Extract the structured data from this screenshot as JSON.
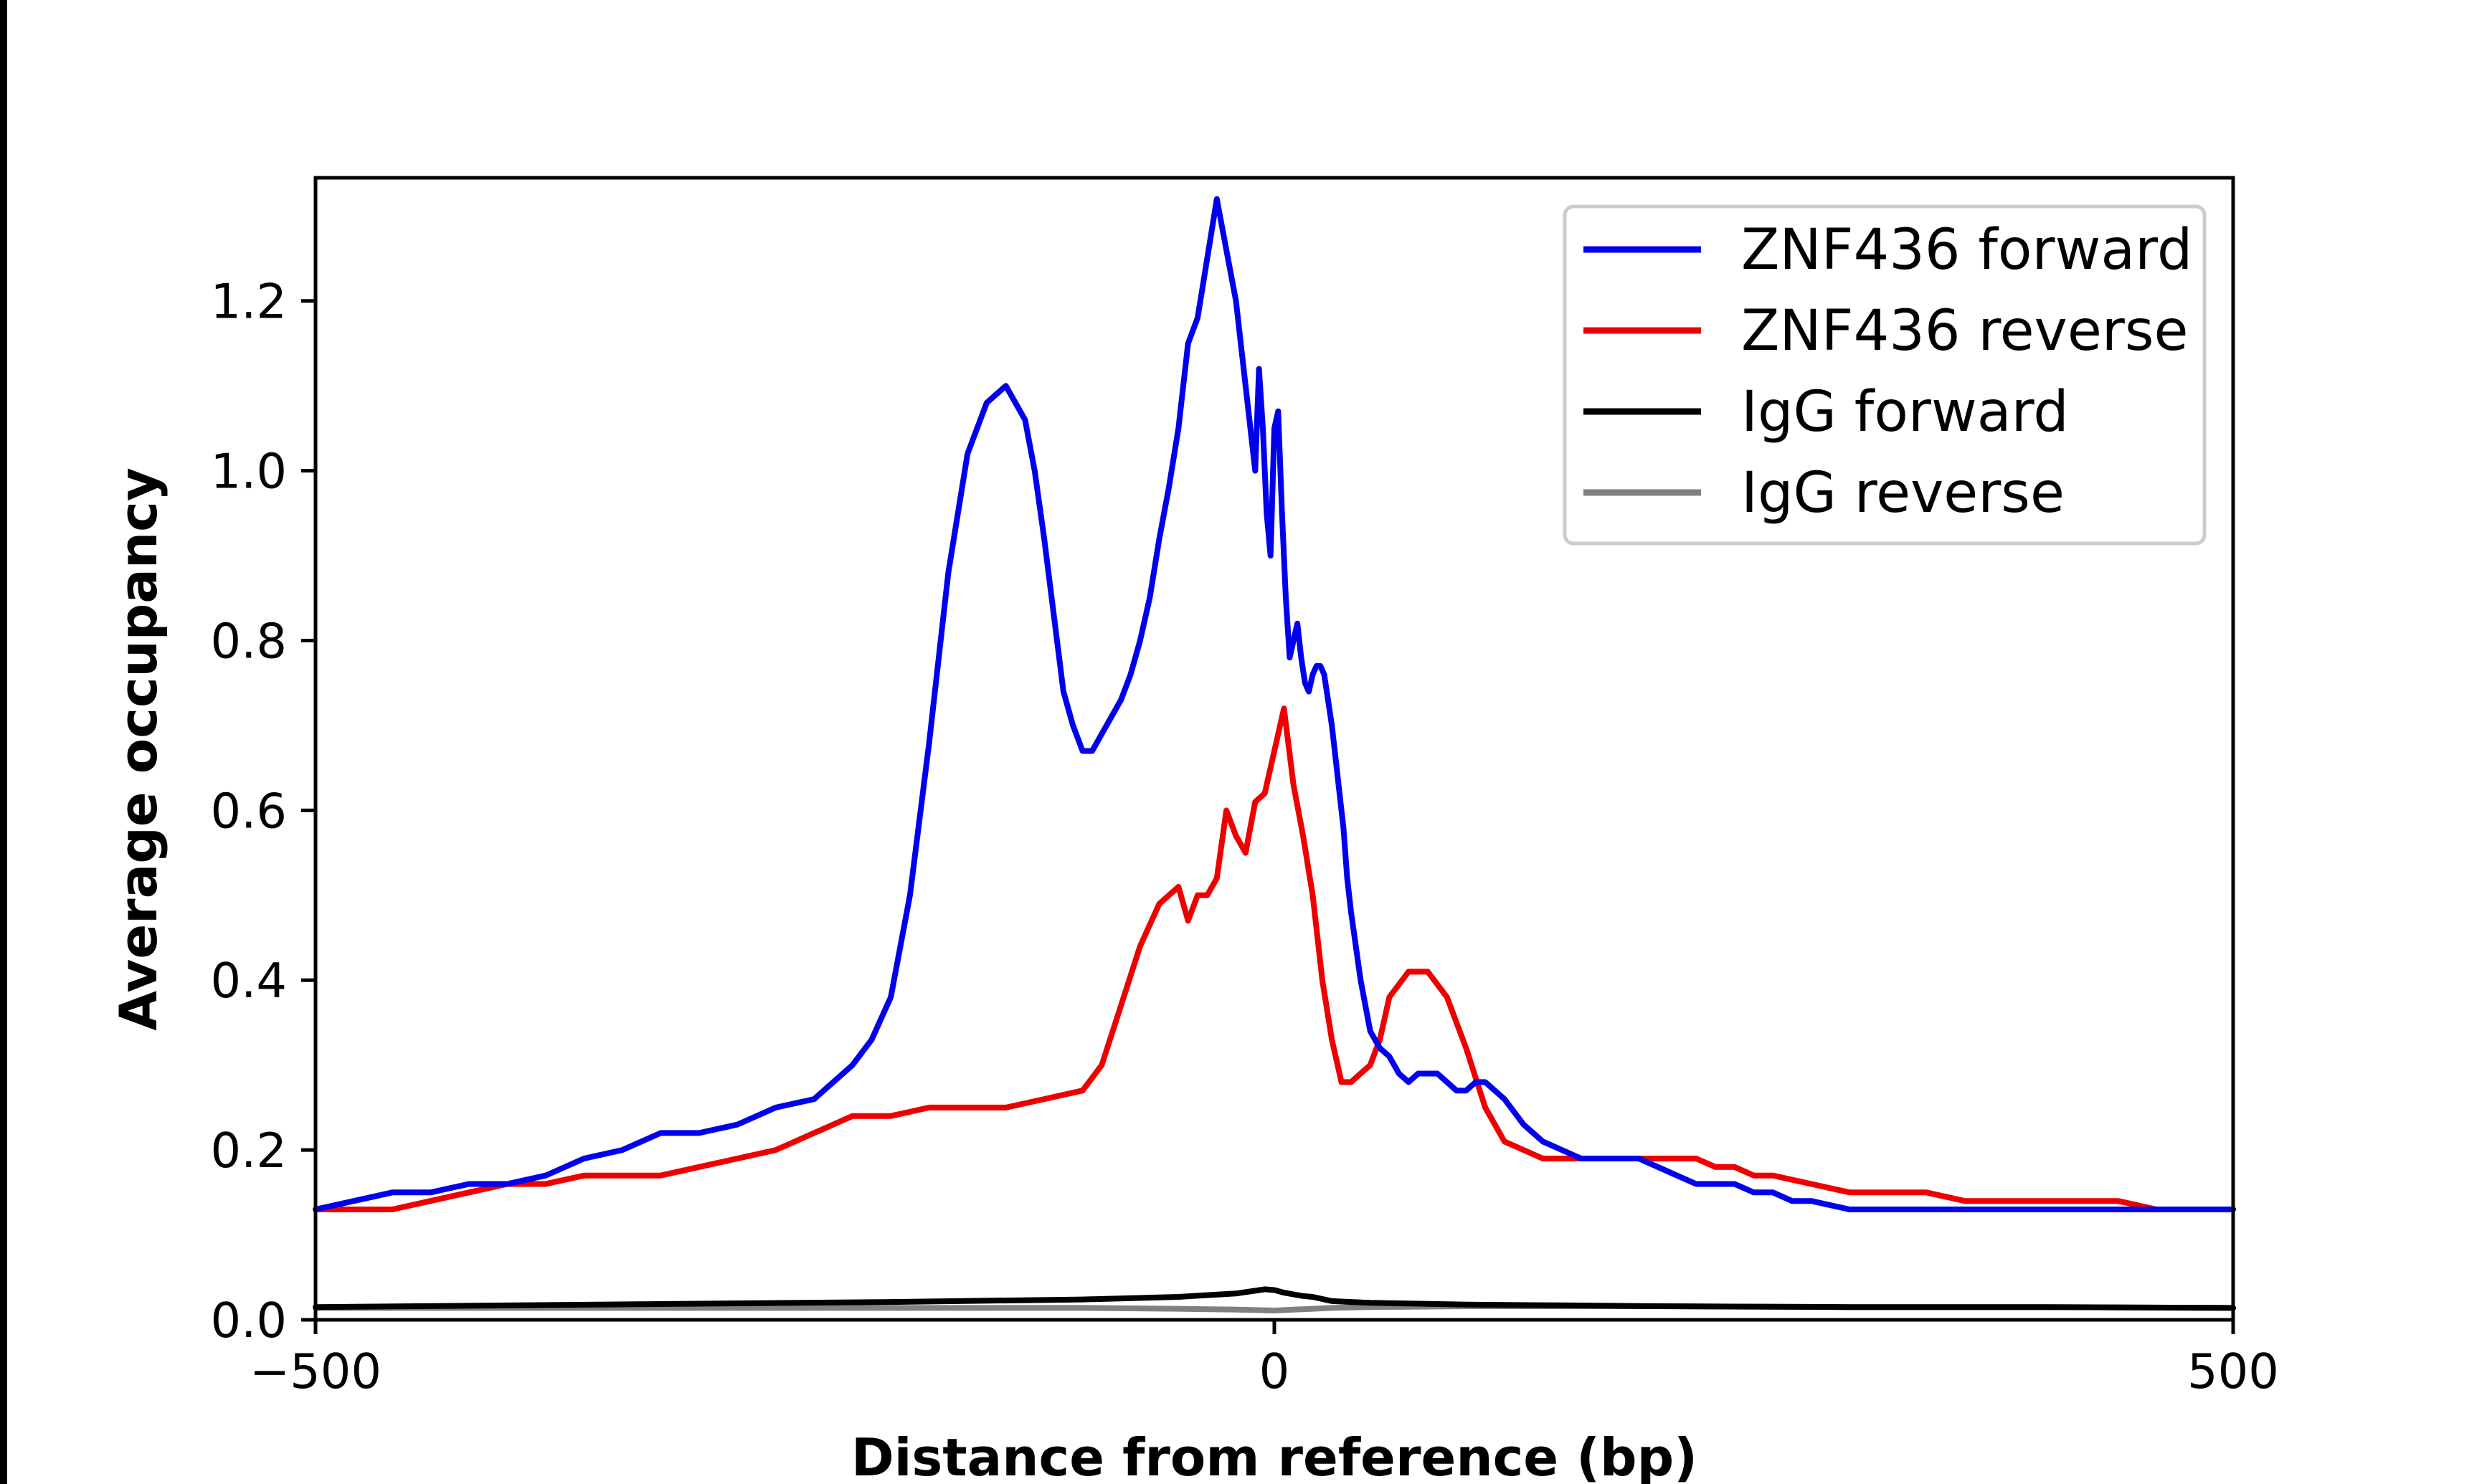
{
  "chart_data": {
    "type": "line",
    "title": "",
    "xlabel": "Distance from reference (bp)",
    "ylabel": "Average occupancy",
    "xlim": [
      -500,
      500
    ],
    "ylim": [
      0,
      1.345
    ],
    "x_ticks": [
      -500,
      0,
      500
    ],
    "x_tick_labels": [
      "−500",
      "0",
      "500"
    ],
    "y_ticks": [
      0.0,
      0.2,
      0.4,
      0.6,
      0.8,
      1.0,
      1.2
    ],
    "y_tick_labels": [
      "0.0",
      "0.2",
      "0.4",
      "0.6",
      "0.8",
      "1.0",
      "1.2"
    ],
    "grid": false,
    "legend_position": "top-right",
    "series": [
      {
        "name": "ZNF436 forward",
        "color": "#0000ee",
        "x": [
          -500,
          -480,
          -460,
          -440,
          -420,
          -400,
          -380,
          -360,
          -340,
          -320,
          -300,
          -280,
          -260,
          -240,
          -220,
          -210,
          -200,
          -190,
          -180,
          -170,
          -160,
          -150,
          -140,
          -130,
          -125,
          -120,
          -115,
          -110,
          -105,
          -100,
          -95,
          -90,
          -85,
          -80,
          -75,
          -70,
          -65,
          -60,
          -55,
          -50,
          -45,
          -40,
          -35,
          -30,
          -25,
          -20,
          -15,
          -10,
          -8,
          -6,
          -4,
          -2,
          0,
          2,
          4,
          6,
          8,
          10,
          12,
          14,
          16,
          18,
          20,
          22,
          24,
          26,
          28,
          30,
          32,
          34,
          36,
          38,
          40,
          45,
          50,
          55,
          60,
          65,
          70,
          75,
          80,
          85,
          90,
          95,
          100,
          105,
          110,
          115,
          120,
          130,
          140,
          150,
          160,
          170,
          180,
          190,
          200,
          210,
          220,
          230,
          240,
          250,
          260,
          270,
          280,
          300,
          320,
          340,
          360,
          380,
          400,
          420,
          440,
          460,
          480,
          500
        ],
        "y": [
          0.13,
          0.14,
          0.15,
          0.15,
          0.16,
          0.16,
          0.17,
          0.19,
          0.2,
          0.22,
          0.22,
          0.23,
          0.25,
          0.26,
          0.3,
          0.33,
          0.38,
          0.5,
          0.68,
          0.88,
          1.02,
          1.08,
          1.1,
          1.06,
          1.0,
          0.92,
          0.83,
          0.74,
          0.7,
          0.67,
          0.67,
          0.69,
          0.71,
          0.73,
          0.76,
          0.8,
          0.85,
          0.92,
          0.98,
          1.05,
          1.15,
          1.18,
          1.25,
          1.32,
          1.26,
          1.2,
          1.1,
          1.0,
          1.12,
          1.05,
          0.95,
          0.9,
          1.05,
          1.07,
          0.95,
          0.85,
          0.78,
          0.8,
          0.82,
          0.78,
          0.75,
          0.74,
          0.76,
          0.77,
          0.77,
          0.76,
          0.73,
          0.7,
          0.66,
          0.62,
          0.58,
          0.52,
          0.48,
          0.4,
          0.34,
          0.32,
          0.31,
          0.29,
          0.28,
          0.29,
          0.29,
          0.29,
          0.28,
          0.27,
          0.27,
          0.28,
          0.28,
          0.27,
          0.26,
          0.23,
          0.21,
          0.2,
          0.19,
          0.19,
          0.19,
          0.19,
          0.18,
          0.17,
          0.16,
          0.16,
          0.16,
          0.15,
          0.15,
          0.14,
          0.14,
          0.13,
          0.13,
          0.13,
          0.13,
          0.13,
          0.13,
          0.13,
          0.13,
          0.13,
          0.13,
          0.13
        ]
      },
      {
        "name": "ZNF436 reverse",
        "color": "#ee0000",
        "x": [
          -500,
          -480,
          -460,
          -440,
          -420,
          -400,
          -380,
          -360,
          -340,
          -320,
          -300,
          -280,
          -260,
          -240,
          -220,
          -200,
          -180,
          -160,
          -140,
          -120,
          -100,
          -90,
          -80,
          -70,
          -60,
          -50,
          -45,
          -40,
          -35,
          -30,
          -25,
          -20,
          -15,
          -10,
          -5,
          0,
          5,
          10,
          15,
          20,
          25,
          30,
          35,
          40,
          45,
          50,
          55,
          60,
          70,
          80,
          90,
          100,
          110,
          120,
          130,
          140,
          150,
          160,
          170,
          180,
          190,
          200,
          210,
          220,
          230,
          240,
          250,
          260,
          280,
          300,
          320,
          340,
          360,
          380,
          400,
          420,
          440,
          460,
          480,
          500
        ],
        "y": [
          0.13,
          0.13,
          0.13,
          0.14,
          0.15,
          0.16,
          0.16,
          0.17,
          0.17,
          0.17,
          0.18,
          0.19,
          0.2,
          0.22,
          0.24,
          0.24,
          0.25,
          0.25,
          0.25,
          0.26,
          0.27,
          0.3,
          0.37,
          0.44,
          0.49,
          0.51,
          0.47,
          0.5,
          0.5,
          0.52,
          0.6,
          0.57,
          0.55,
          0.61,
          0.62,
          0.67,
          0.72,
          0.63,
          0.57,
          0.5,
          0.4,
          0.33,
          0.28,
          0.28,
          0.29,
          0.3,
          0.33,
          0.38,
          0.41,
          0.41,
          0.38,
          0.32,
          0.25,
          0.21,
          0.2,
          0.19,
          0.19,
          0.19,
          0.19,
          0.19,
          0.19,
          0.19,
          0.19,
          0.19,
          0.18,
          0.18,
          0.17,
          0.17,
          0.16,
          0.15,
          0.15,
          0.15,
          0.14,
          0.14,
          0.14,
          0.14,
          0.14,
          0.13,
          0.13,
          0.13
        ]
      },
      {
        "name": "IgG forward",
        "color": "#000000",
        "x": [
          -500,
          -400,
          -300,
          -200,
          -100,
          -50,
          -20,
          -5,
          0,
          5,
          10,
          15,
          20,
          30,
          50,
          100,
          200,
          300,
          400,
          500
        ],
        "y": [
          0.015,
          0.017,
          0.019,
          0.021,
          0.024,
          0.027,
          0.031,
          0.036,
          0.035,
          0.032,
          0.03,
          0.028,
          0.027,
          0.022,
          0.02,
          0.018,
          0.016,
          0.015,
          0.015,
          0.014
        ]
      },
      {
        "name": "IgG reverse",
        "color": "#808080",
        "x": [
          -500,
          -400,
          -300,
          -200,
          -100,
          -50,
          -20,
          0,
          10,
          20,
          30,
          50,
          100,
          200,
          300,
          400,
          500
        ],
        "y": [
          0.014,
          0.014,
          0.014,
          0.014,
          0.014,
          0.013,
          0.012,
          0.011,
          0.012,
          0.013,
          0.014,
          0.015,
          0.016,
          0.016,
          0.015,
          0.015,
          0.014
        ]
      }
    ]
  }
}
